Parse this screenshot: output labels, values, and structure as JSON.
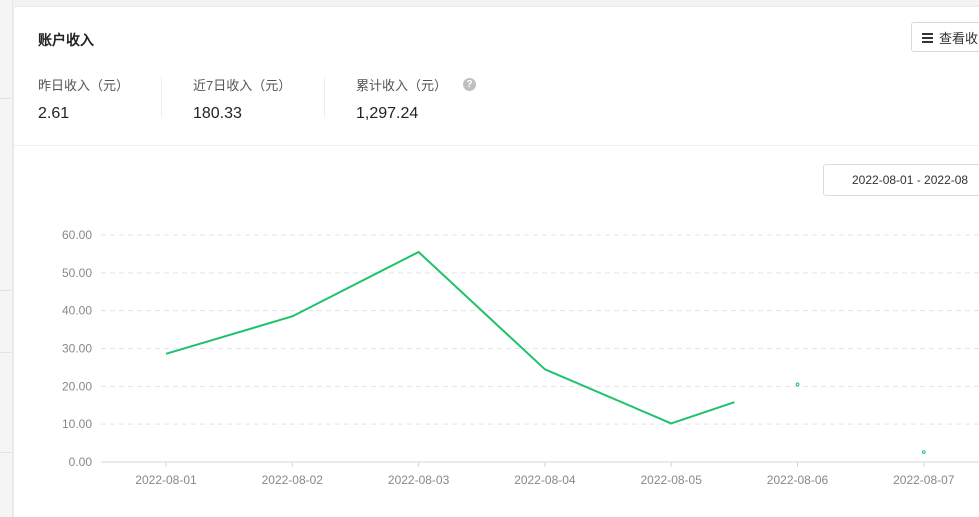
{
  "card": {
    "title": "账户收入",
    "view_button_label": "查看收"
  },
  "stats": [
    {
      "label": "昨日收入（元）",
      "value": "2.61"
    },
    {
      "label": "近7日收入（元）",
      "value": "180.33"
    },
    {
      "label": "累计收入（元）",
      "value": "1,297.24",
      "help_icon": "question-circle-icon"
    }
  ],
  "date_range": {
    "value": "2022-08-01 - 2022-08"
  },
  "colors": {
    "line": "#1fc26b",
    "grid": "#e4e4e4",
    "axis": "#d6d6d6"
  },
  "chart_data": {
    "type": "line",
    "categories": [
      "2022-08-01",
      "2022-08-02",
      "2022-08-03",
      "2022-08-04",
      "2022-08-05",
      "2022-08-06",
      "2022-08-07"
    ],
    "yticks": [
      "0.00",
      "10.00",
      "20.00",
      "30.00",
      "40.00",
      "50.00",
      "60.00"
    ],
    "ylim": [
      0,
      60
    ],
    "series": [
      {
        "points": [
          {
            "x": "2022-08-01",
            "y": 28.6
          },
          {
            "x": "2022-08-02",
            "y": 38.5
          },
          {
            "x": "2022-08-03",
            "y": 55.5
          },
          {
            "x": "2022-08-04",
            "y": 24.5
          },
          {
            "x": "2022-08-05",
            "y": 10.2
          },
          {
            "x": "2022-08-05.5",
            "y": 15.8
          }
        ],
        "isolated_points": [
          {
            "x": "2022-08-06",
            "y": 20.5
          },
          {
            "x": "2022-08-07",
            "y": 2.61
          }
        ]
      }
    ],
    "grid": true,
    "xlabel": "",
    "ylabel": ""
  }
}
